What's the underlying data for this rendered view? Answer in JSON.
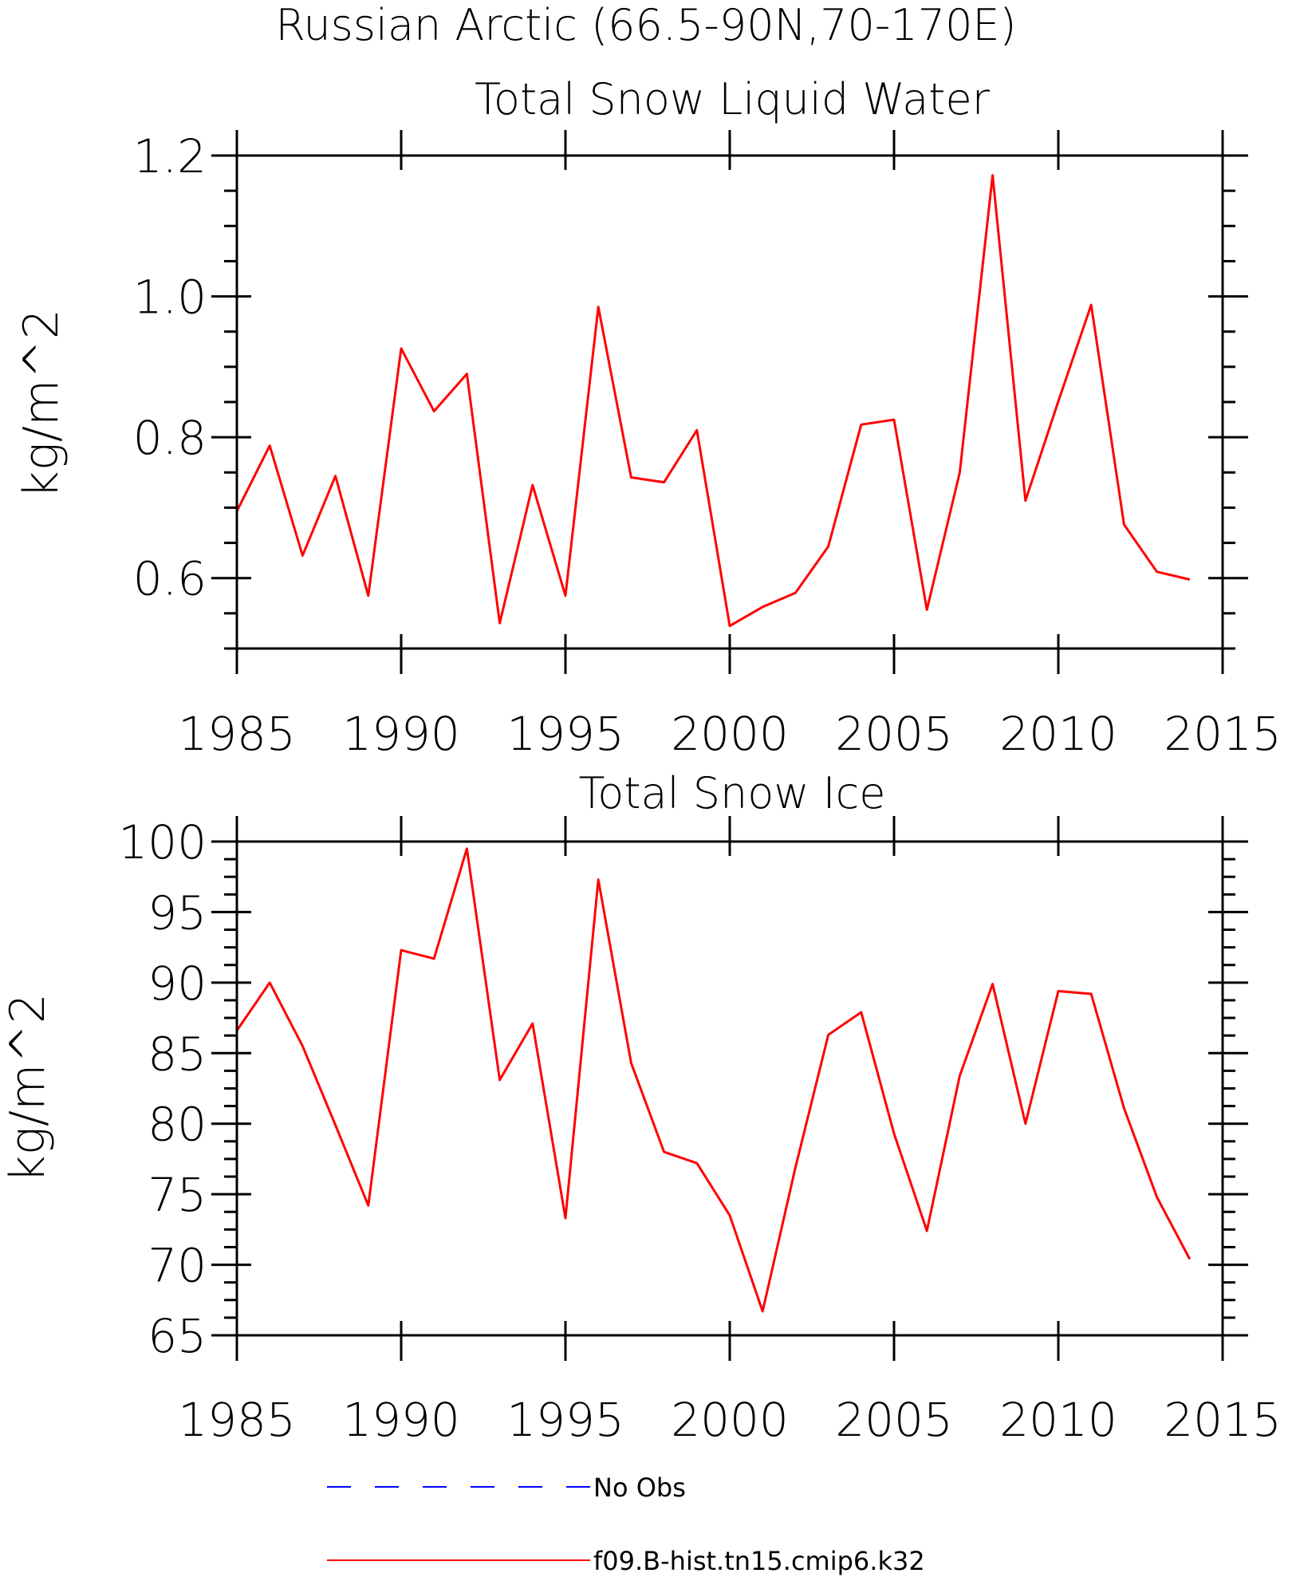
{
  "figure_title": "Russian Arctic (66.5-90N,70-170E)",
  "chart_data": [
    {
      "type": "line",
      "title": "Total Snow Liquid Water",
      "xlabel": "",
      "ylabel": "kg/m^2",
      "xlim": [
        1985,
        2015
      ],
      "ylim": [
        0.5,
        1.2
      ],
      "xticks": [
        1985,
        1990,
        1995,
        2000,
        2005,
        2010,
        2015
      ],
      "yticks": [
        0.6,
        0.8,
        1.0,
        1.2
      ],
      "ytick_labels": [
        "0.6",
        "0.8",
        "1.0",
        "1.2"
      ],
      "x": [
        1985,
        1986,
        1987,
        1988,
        1989,
        1990,
        1991,
        1992,
        1993,
        1994,
        1995,
        1996,
        1997,
        1998,
        1999,
        2000,
        2001,
        2002,
        2003,
        2004,
        2005,
        2006,
        2007,
        2008,
        2009,
        2010,
        2011,
        2012,
        2013,
        2014
      ],
      "series": [
        {
          "name": "f09.B-hist.tn15.cmip6.k32",
          "color": "#ff0000",
          "values": [
            0.695,
            0.788,
            0.632,
            0.745,
            0.575,
            0.926,
            0.837,
            0.89,
            0.536,
            0.732,
            0.575,
            0.985,
            0.743,
            0.736,
            0.81,
            0.532,
            0.559,
            0.579,
            0.645,
            0.818,
            0.825,
            0.555,
            0.75,
            1.172,
            0.71,
            0.851,
            0.988,
            0.676,
            0.609,
            0.598
          ]
        }
      ]
    },
    {
      "type": "line",
      "title": "Total Snow Ice",
      "xlabel": "",
      "ylabel": "kg/m^2",
      "xlim": [
        1985,
        2015
      ],
      "ylim": [
        65,
        100
      ],
      "xticks": [
        1985,
        1990,
        1995,
        2000,
        2005,
        2010,
        2015
      ],
      "yticks": [
        65,
        70,
        75,
        80,
        85,
        90,
        95,
        100
      ],
      "ytick_labels": [
        "65",
        "70",
        "75",
        "80",
        "85",
        "90",
        "95",
        "100"
      ],
      "x": [
        1985,
        1986,
        1987,
        1988,
        1989,
        1990,
        1991,
        1992,
        1993,
        1994,
        1995,
        1996,
        1997,
        1998,
        1999,
        2000,
        2001,
        2002,
        2003,
        2004,
        2005,
        2006,
        2007,
        2008,
        2009,
        2010,
        2011,
        2012,
        2013,
        2014
      ],
      "series": [
        {
          "name": "f09.B-hist.tn15.cmip6.k32",
          "color": "#ff0000",
          "values": [
            86.6,
            90.0,
            85.5,
            79.9,
            74.2,
            92.3,
            91.7,
            99.5,
            83.1,
            87.1,
            73.3,
            97.3,
            84.3,
            78.0,
            77.2,
            73.5,
            66.7,
            76.9,
            86.3,
            87.9,
            79.3,
            72.4,
            83.4,
            89.9,
            80.0,
            89.4,
            89.2,
            81.1,
            74.8,
            70.4
          ]
        }
      ]
    }
  ],
  "legend": {
    "placement": "bottom-center",
    "items": [
      {
        "label": "No Obs",
        "color": "#0000ff",
        "style": "dashed"
      },
      {
        "label": "f09.B-hist.tn15.cmip6.k32",
        "color": "#ff0000",
        "style": "solid"
      }
    ]
  }
}
